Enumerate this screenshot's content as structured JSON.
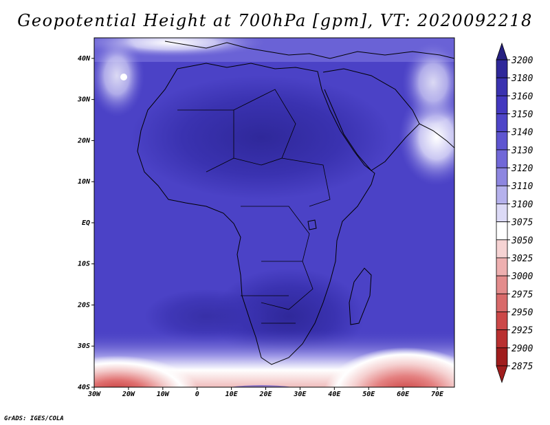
{
  "title": "Geopotential Height at 700hPa [gpm], VT: 2020092218",
  "footer": "GrADS: IGES/COLA",
  "map": {
    "lon_range": [
      -30,
      75
    ],
    "lat_range": [
      -40,
      45
    ],
    "lon_ticks": [
      "30W",
      "20W",
      "10W",
      "0",
      "10E",
      "20E",
      "30E",
      "40E",
      "50E",
      "60E",
      "70E"
    ],
    "lat_ticks": [
      "40N",
      "30N",
      "20N",
      "10N",
      "EQ",
      "10S",
      "20S",
      "30S",
      "40S"
    ]
  },
  "colorbar": {
    "levels": [
      "3200",
      "3180",
      "3160",
      "3150",
      "3140",
      "3130",
      "3120",
      "3110",
      "3100",
      "3075",
      "3050",
      "3025",
      "3000",
      "2975",
      "2950",
      "2925",
      "2900",
      "2875"
    ],
    "colors": [
      "#262080",
      "#2f289a",
      "#3a32b0",
      "#4338bf",
      "#4e45c8",
      "#5e55d0",
      "#7168d8",
      "#8d86e0",
      "#b5b1ec",
      "#dcdaf6",
      "#ffffff",
      "#f6d3d3",
      "#eeb0b0",
      "#e38c8c",
      "#d86a6a",
      "#cc4848",
      "#b93030",
      "#a01d1d"
    ]
  }
}
